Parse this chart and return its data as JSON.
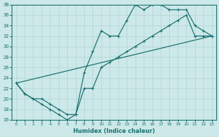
{
  "xlabel": "Humidex (Indice chaleur)",
  "xlim": [
    -0.5,
    23.5
  ],
  "ylim": [
    16,
    38
  ],
  "xticks": [
    0,
    1,
    2,
    3,
    4,
    5,
    6,
    7,
    8,
    9,
    10,
    11,
    12,
    13,
    14,
    15,
    16,
    17,
    18,
    19,
    20,
    21,
    22,
    23
  ],
  "yticks": [
    16,
    18,
    20,
    22,
    24,
    26,
    28,
    30,
    32,
    34,
    36,
    38
  ],
  "bg_color": "#cce8e8",
  "line_color": "#1a7070",
  "grid_color": "#b8d8d8",
  "line1_x": [
    0,
    1,
    2,
    3,
    4,
    5,
    6,
    7,
    8,
    9,
    10,
    11,
    12,
    13,
    14,
    15,
    16,
    17,
    18,
    19,
    20,
    21,
    22,
    23
  ],
  "line1_y": [
    23,
    21,
    20,
    19,
    18,
    17,
    16,
    17,
    25,
    29,
    33,
    32,
    32,
    35,
    38,
    37,
    38,
    38,
    37,
    37,
    37,
    34,
    33,
    32
  ],
  "line2_x": [
    0,
    1,
    2,
    3,
    4,
    5,
    6,
    7,
    8,
    9,
    10,
    11,
    12,
    13,
    14,
    15,
    16,
    17,
    18,
    19,
    20,
    21,
    22,
    23
  ],
  "line2_y": [
    23,
    21,
    20,
    20,
    19,
    18,
    17,
    17,
    22,
    22,
    26,
    27,
    28,
    29,
    30,
    31,
    32,
    33,
    34,
    35,
    36,
    32,
    32,
    32
  ],
  "line3_x": [
    0,
    23
  ],
  "line3_y": [
    23,
    32
  ]
}
